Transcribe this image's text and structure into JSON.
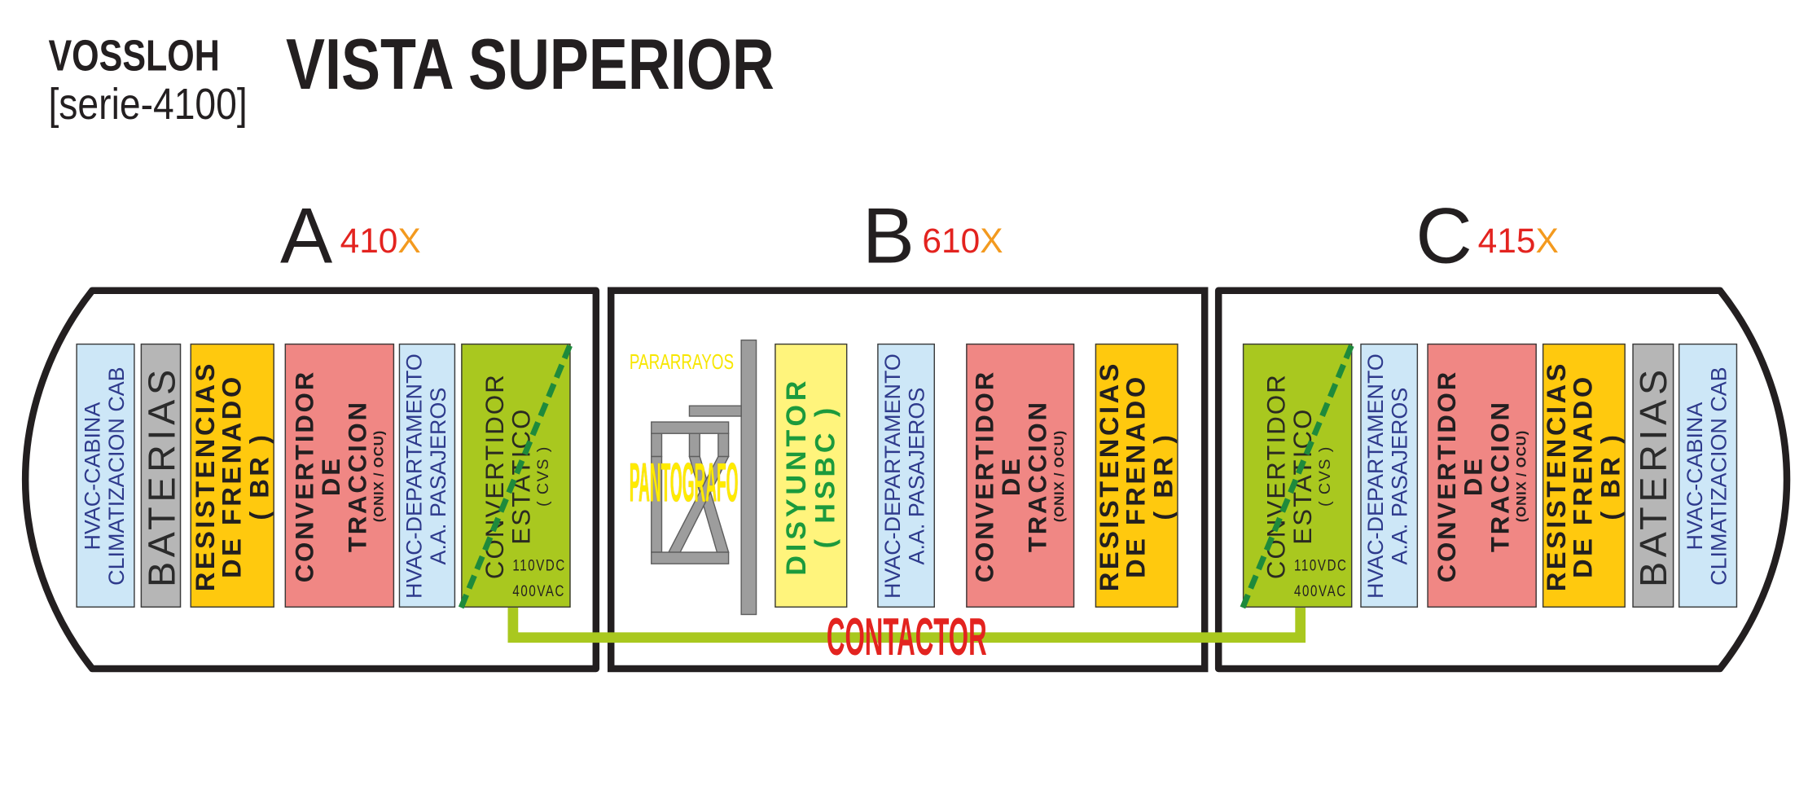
{
  "header": {
    "brand": "VOSSLOH",
    "series": "[serie-4100]",
    "title": "VISTA SUPERIOR"
  },
  "cars": [
    {
      "letter": "A",
      "number": "410",
      "suffix": "X",
      "components": [
        {
          "lines": [
            "HVAC-CABINA",
            "CLIMATIZACION CAB"
          ]
        },
        {
          "lines": [
            "BATERIAS"
          ]
        },
        {
          "lines": [
            "RESISTENCIAS",
            "DE FRENADO",
            "( BR )"
          ]
        },
        {
          "lines": [
            "CONVERTIDOR",
            "DE",
            "TRACCION",
            "(ONIX / OCU)"
          ]
        },
        {
          "lines": [
            "HVAC-DEPARTAMENTO",
            "A.A. PASAJEROS"
          ]
        },
        {
          "lines": [
            "CONVERTIDOR",
            "ESTATICO",
            "( CVS )"
          ],
          "outputs": [
            "110VDC",
            "400VAC"
          ]
        }
      ]
    },
    {
      "letter": "B",
      "number": "610",
      "suffix": "X",
      "pararrayos": "PARARRAYOS",
      "pantografo": "PANTOGRAFO",
      "components": [
        {
          "lines": [
            "DISYUNTOR",
            "( HSBC )"
          ]
        },
        {
          "lines": [
            "HVAC-DEPARTAMENTO",
            "A.A. PASAJEROS"
          ]
        },
        {
          "lines": [
            "CONVERTIDOR",
            "DE",
            "TRACCION",
            "(ONIX / OCU)"
          ]
        },
        {
          "lines": [
            "RESISTENCIAS",
            "DE FRENADO",
            "( BR )"
          ]
        }
      ]
    },
    {
      "letter": "C",
      "number": "415",
      "suffix": "X",
      "components": [
        {
          "lines": [
            "CONVERTIDOR",
            "ESTATICO",
            "( CVS )"
          ],
          "outputs": [
            "110VDC",
            "400VAC"
          ]
        },
        {
          "lines": [
            "HVAC-DEPARTAMENTO",
            "A.A. PASAJEROS"
          ]
        },
        {
          "lines": [
            "CONVERTIDOR",
            "DE",
            "TRACCION",
            "(ONIX / OCU)"
          ]
        },
        {
          "lines": [
            "RESISTENCIAS",
            "DE FRENADO",
            "( BR )"
          ]
        },
        {
          "lines": [
            "BATERIAS"
          ]
        },
        {
          "lines": [
            "HVAC-CABINA",
            "CLIMATIZACION CAB"
          ]
        }
      ]
    }
  ],
  "contactor": "CONTACTOR",
  "colors": {
    "car_number": "#e3231f",
    "car_suffix": "#f39a1f",
    "contactor_text": "#e3231f",
    "contactor_line": "#a9c81f",
    "resistencias": "#ffc90e",
    "convertidor_traccion": "#f08784",
    "convertidor_estatico": "#a9c81f",
    "hvac": "#cde7f7",
    "baterias": "#b6b6b6",
    "disyuntor": "#fff47c",
    "cvs_diagonal": "#1e8a3c"
  }
}
